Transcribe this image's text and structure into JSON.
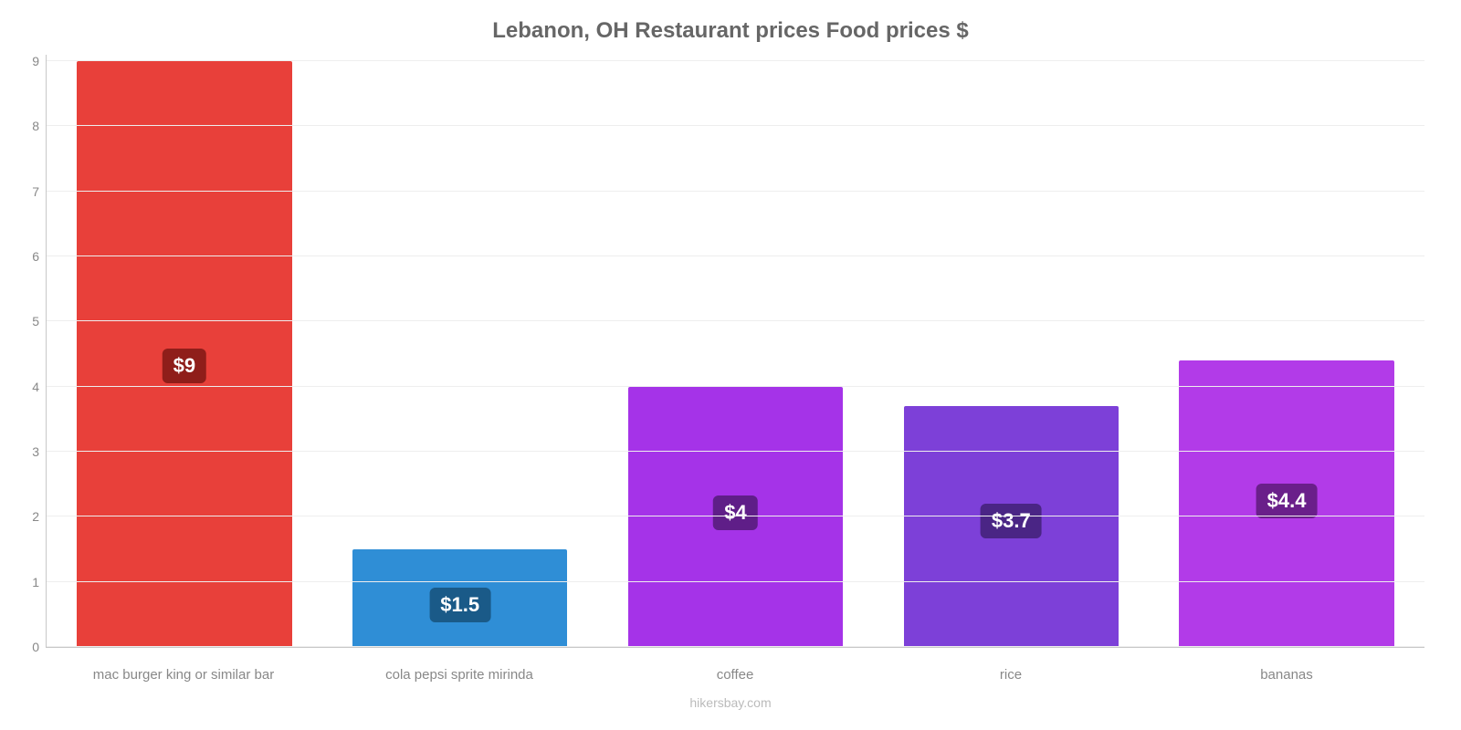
{
  "chart": {
    "type": "bar",
    "title": "Lebanon, OH Restaurant prices Food prices $",
    "title_fontsize": 24,
    "title_color": "#666666",
    "background_color": "#ffffff",
    "grid_color": "#eeeeee",
    "axis_color": "#c8c8c8",
    "label_color": "#888888",
    "label_fontsize": 15,
    "ylim": [
      0,
      9.1
    ],
    "y_ticks": [
      0,
      1,
      2,
      3,
      4,
      5,
      6,
      7,
      8,
      9
    ],
    "bar_width_pct": 78,
    "categories": [
      "mac burger king or similar bar",
      "cola pepsi sprite mirinda",
      "coffee",
      "rice",
      "bananas"
    ],
    "values": [
      9,
      1.5,
      4,
      3.7,
      4.4
    ],
    "value_labels": [
      "$9",
      "$1.5",
      "$4",
      "$3.7",
      "$4.4"
    ],
    "bar_colors": [
      "#e8403a",
      "#2f8ed6",
      "#a533e8",
      "#7d40d8",
      "#b23be8"
    ],
    "value_badge_bg": [
      "#8f1e1a",
      "#1a5a88",
      "#5f1e88",
      "#4a2585",
      "#6a1f8a"
    ],
    "value_badge_fontsize": 22,
    "value_badge_color": "#ffffff",
    "footer": "hikersbay.com",
    "footer_color": "#bbbbbb"
  }
}
